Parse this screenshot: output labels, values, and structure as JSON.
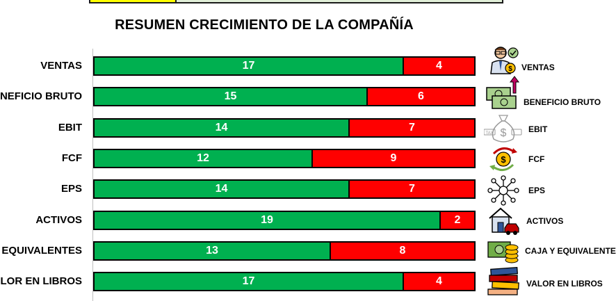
{
  "title": "RESUMEN CRECIMIENTO DE LA COMPAÑÍA",
  "colors": {
    "green": "#00b050",
    "red": "#ff0000"
  },
  "chart_data": {
    "type": "bar",
    "orientation": "horizontal",
    "stacked": true,
    "title": "RESUMEN CRECIMIENTO DE LA COMPAÑÍA",
    "categories": [
      "VENTAS",
      "BENEFICIO BRUTO",
      "EBIT",
      "FCF",
      "EPS",
      "ACTIVOS",
      "CAJA Y EQUIVALENTES",
      "VALOR EN LIBROS"
    ],
    "category_labels_visible": [
      "VENTAS",
      "NEFICIO BRUTO",
      "EBIT",
      "FCF",
      "EPS",
      "ACTIVOS",
      "EQUIVALENTES",
      "LOR EN LIBROS"
    ],
    "series": [
      {
        "color": "#00b050",
        "values": [
          17,
          15,
          14,
          12,
          14,
          19,
          13,
          17
        ]
      },
      {
        "color": "#ff0000",
        "values": [
          4,
          6,
          7,
          9,
          7,
          2,
          8,
          4
        ]
      }
    ],
    "xlim": [
      0,
      21
    ],
    "grid": false,
    "legend": "none"
  },
  "icons": [
    {
      "name": "salesman-icon",
      "label": "VENTAS"
    },
    {
      "name": "money-growth-icon",
      "label": "BENEFICIO BRUTO"
    },
    {
      "name": "tax-moneybag-icon",
      "label": "EBIT"
    },
    {
      "name": "cashflow-icon",
      "label": "FCF"
    },
    {
      "name": "network-icon",
      "label": "EPS"
    },
    {
      "name": "house-car-icon",
      "label": "ACTIVOS"
    },
    {
      "name": "cash-coins-icon",
      "label": "CAJA Y EQUIVALENTES"
    },
    {
      "name": "books-icon",
      "label": "VALOR EN LIBROS"
    }
  ]
}
